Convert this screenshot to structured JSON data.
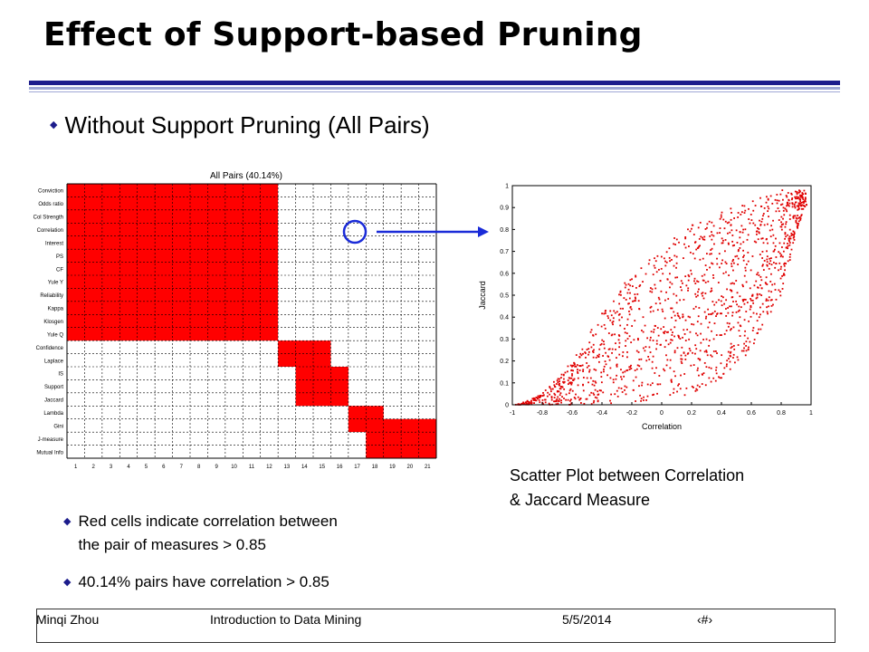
{
  "title": "Effect of Support-based Pruning",
  "main_bullet": "Without Support Pruning (All Pairs)",
  "notes": [
    {
      "line1": "Red cells indicate correlation between",
      "line2": "the pair of measures > 0.85"
    },
    {
      "line1": "40.14% pairs have correlation > 0.85",
      "line2": ""
    }
  ],
  "caption": {
    "line1": "Scatter Plot between Correlation",
    "line2": "& Jaccard Measure"
  },
  "footer": {
    "author": "Minqi Zhou",
    "course": "Introduction to Data Mining",
    "date": "5/5/2014",
    "page": "‹#›"
  },
  "colors": {
    "accent_blue": "#1c1c8c",
    "rule_light": "#9fa8d6",
    "cell_red": "#ff0000",
    "arrow_blue": "#1a2bd8",
    "point_red": "#e00000"
  },
  "matrix": {
    "title": "All Pairs (40.14%)",
    "row_labels": [
      "Conviction",
      "Odds ratio",
      "Col Strength",
      "Correlation",
      "Interest",
      "PS",
      "CF",
      "Yule Y",
      "Reliability",
      "Kappa",
      "Klosgen",
      "Yule Q",
      "Confidence",
      "Laplace",
      "IS",
      "Support",
      "Jaccard",
      "Lambda",
      "Gini",
      "J-measure",
      "Mutual Info"
    ],
    "col_labels": [
      "1",
      "2",
      "3",
      "4",
      "5",
      "6",
      "7",
      "8",
      "9",
      "10",
      "11",
      "12",
      "13",
      "14",
      "15",
      "16",
      "17",
      "18",
      "19",
      "20",
      "21"
    ],
    "red_blocks": [
      {
        "rows": [
          1,
          12
        ],
        "cols": [
          1,
          12
        ]
      },
      {
        "rows": [
          13,
          14
        ],
        "cols": [
          13,
          15
        ]
      },
      {
        "rows": [
          15,
          17
        ],
        "cols": [
          14,
          16
        ]
      },
      {
        "rows": [
          18,
          19
        ],
        "cols": [
          17,
          18
        ]
      },
      {
        "rows": [
          19,
          21
        ],
        "cols": [
          18,
          21
        ]
      }
    ]
  },
  "chart_data": {
    "type": "scatter",
    "title": "",
    "xlabel": "Correlation",
    "ylabel": "Jaccard",
    "xlim": [
      -1,
      1
    ],
    "ylim": [
      0,
      1
    ],
    "xticks": [
      "-1",
      "-0.8",
      "-0.6",
      "-0.4",
      "-0.2",
      "0",
      "0.2",
      "0.4",
      "0.6",
      "0.8",
      "1"
    ],
    "yticks": [
      "0",
      "0.1",
      "0.2",
      "0.3",
      "0.4",
      "0.5",
      "0.6",
      "0.7",
      "0.8",
      "0.9",
      "1"
    ],
    "series": [
      {
        "color": "#e00000",
        "lower_boundary": [
          [
            -0.98,
            0.0
          ],
          [
            -0.5,
            0.0
          ],
          [
            0.0,
            0.02
          ],
          [
            0.2,
            0.05
          ],
          [
            0.4,
            0.12
          ],
          [
            0.6,
            0.25
          ],
          [
            0.8,
            0.5
          ],
          [
            0.95,
            0.9
          ]
        ],
        "upper_boundary": [
          [
            -0.98,
            0.0
          ],
          [
            -0.8,
            0.05
          ],
          [
            -0.6,
            0.2
          ],
          [
            -0.4,
            0.42
          ],
          [
            -0.2,
            0.6
          ],
          [
            0.0,
            0.72
          ],
          [
            0.2,
            0.82
          ],
          [
            0.4,
            0.88
          ],
          [
            0.6,
            0.93
          ],
          [
            0.8,
            0.98
          ]
        ]
      }
    ]
  }
}
